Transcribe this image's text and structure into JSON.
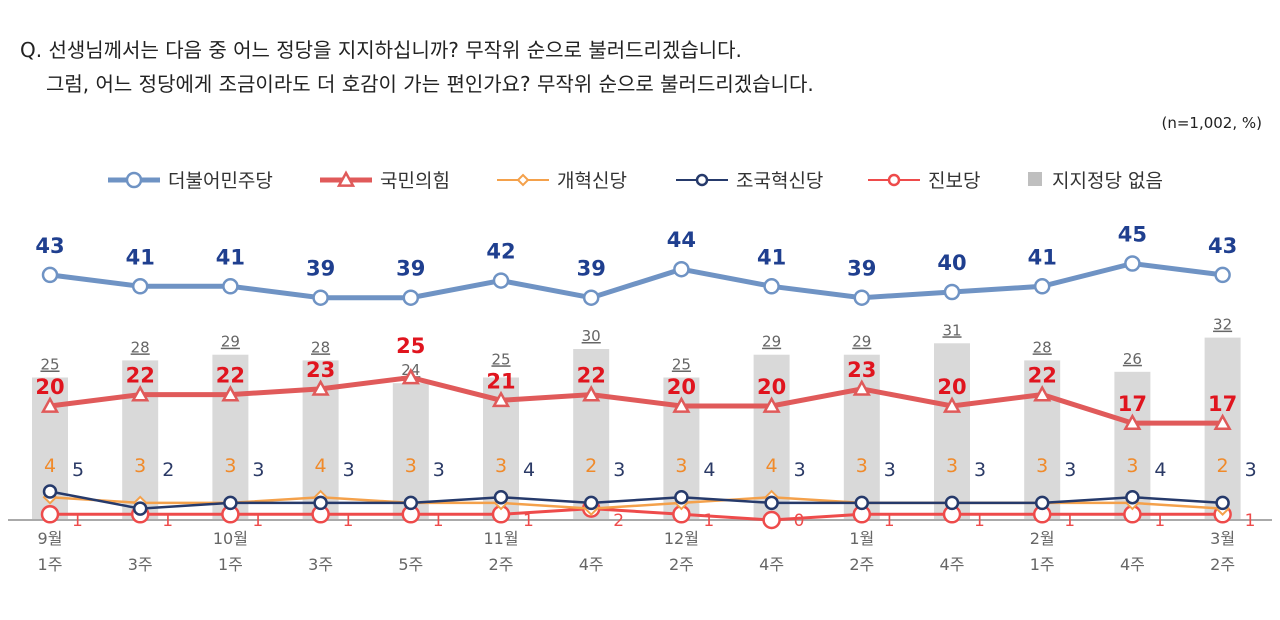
{
  "question": {
    "line1": "Q. 선생님께서는 다음 중 어느 정당을 지지하십니까? 무작위 순으로 불러드리겠습니다.",
    "line2": "그럼, 어느 정당에게 조금이라도 더 호감이 가는 편인가요? 무작위 순으로 불러드리겠습니다."
  },
  "sample_note": "(n=1,002,  %)",
  "chart_data": {
    "type": "line",
    "categories": [
      [
        "9월",
        "1주"
      ],
      [
        "",
        "3주"
      ],
      [
        "10월",
        "1주"
      ],
      [
        "",
        "3주"
      ],
      [
        "",
        "5주"
      ],
      [
        "11월",
        "2주"
      ],
      [
        "",
        "4주"
      ],
      [
        "12월",
        "2주"
      ],
      [
        "",
        "4주"
      ],
      [
        "1월",
        "2주"
      ],
      [
        "",
        "4주"
      ],
      [
        "2월",
        "1주"
      ],
      [
        "",
        "4주"
      ],
      [
        "3월",
        "2주"
      ]
    ],
    "legend_placement": "top",
    "bars": {
      "name": "지지정당 없음",
      "color": "#d9d9d9",
      "values": [
        25,
        28,
        29,
        28,
        24,
        25,
        30,
        25,
        29,
        29,
        31,
        28,
        26,
        32
      ]
    },
    "series": [
      {
        "name": "더불어민주당",
        "color": "#6f93c4",
        "label_color": "#1f3f8f",
        "marker": "circle",
        "values": [
          43,
          41,
          41,
          39,
          39,
          42,
          39,
          44,
          41,
          39,
          40,
          41,
          45,
          43
        ]
      },
      {
        "name": "국민의힘",
        "color": "#e05a5a",
        "label_color": "#e0141e",
        "marker": "triangle",
        "values": [
          20,
          22,
          22,
          23,
          25,
          21,
          22,
          20,
          20,
          23,
          20,
          22,
          17,
          17
        ]
      },
      {
        "name": "개혁신당",
        "color": "#f4a14b",
        "label_color": "#f08a2a",
        "marker": "diamond",
        "values": [
          4,
          3,
          3,
          4,
          3,
          3,
          2,
          3,
          4,
          3,
          3,
          3,
          3,
          2
        ]
      },
      {
        "name": "조국혁신당",
        "color": "#263a6b",
        "label_color": "#2b3a66",
        "marker": "circle",
        "values": [
          5,
          2,
          3,
          3,
          3,
          4,
          3,
          4,
          3,
          3,
          3,
          3,
          4,
          3
        ]
      },
      {
        "name": "진보당",
        "color": "#ee4b4b",
        "label_color": "#ee4b4b",
        "marker": "circle",
        "values": [
          1,
          1,
          1,
          1,
          1,
          1,
          2,
          1,
          0,
          1,
          1,
          1,
          1,
          1
        ]
      }
    ],
    "ylim": [
      0,
      50
    ]
  }
}
